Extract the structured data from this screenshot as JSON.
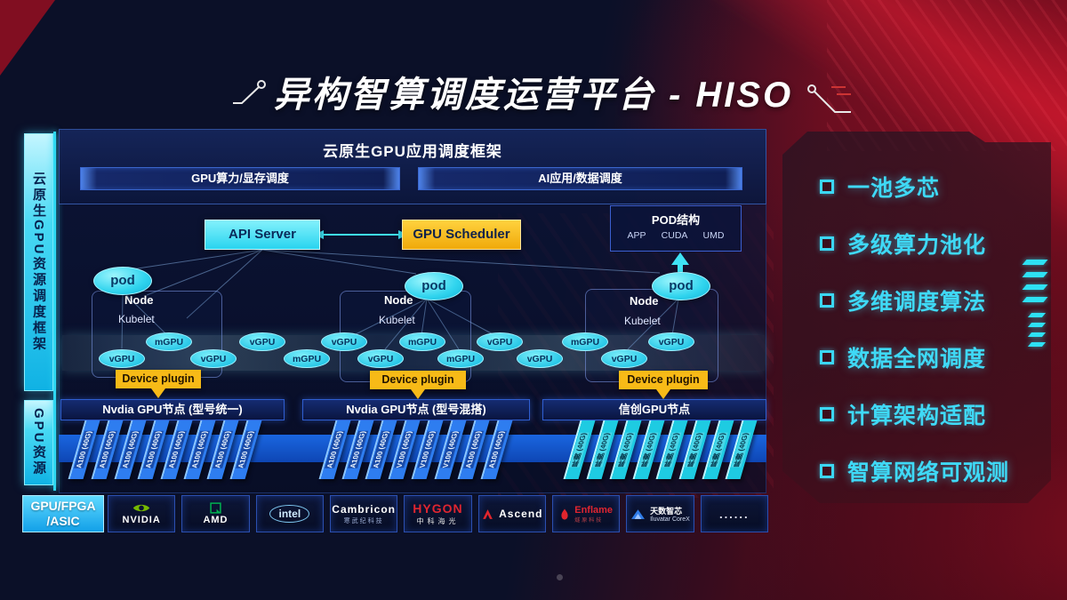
{
  "title": "异构智算调度运营平台 - HISO",
  "left_sidebar": {
    "top": "云原生GPU资源调度框架",
    "bottom": "GPU资源"
  },
  "framework": {
    "heading": "云原生GPU应用调度框架",
    "bars": [
      "GPU算力/显存调度",
      "AI应用/数据调度"
    ]
  },
  "control": {
    "api_server": "API Server",
    "gpu_scheduler": "GPU Scheduler"
  },
  "pod_structure": {
    "title": "POD结构",
    "layers": [
      "APP",
      "CUDA",
      "UMD"
    ]
  },
  "node_groups": [
    {
      "pod": "pod",
      "name": "Node",
      "agent": "Kubelet",
      "plugin": "Device plugin"
    },
    {
      "pod": "pod",
      "name": "Node",
      "agent": "Kubelet",
      "plugin": "Device plugin"
    },
    {
      "pod": "pod",
      "name": "Node",
      "agent": "Kubelet",
      "plugin": "Device plugin"
    }
  ],
  "gpu_ellipses": [
    "vGPU",
    "mGPU",
    "vGPU",
    "vGPU",
    "mGPU",
    "vGPU",
    "vGPU",
    "mGPU",
    "mGPU",
    "vGPU",
    "vGPU",
    "mGPU",
    "vGPU",
    "vGPU"
  ],
  "node_bars": [
    "Nvdia GPU节点 (型号统一)",
    "Nvdia GPU节点 (型号混搭)",
    "信创GPU节点"
  ],
  "gpu_stacks": {
    "uniform": [
      "A100 (40G)",
      "A100 (40G)",
      "A100 (40G)",
      "A100 (40G)",
      "A100 (40G)",
      "A100 (40G)",
      "A100 (40G)",
      "A100 (40G)"
    ],
    "mixed": [
      "A100 (40G)",
      "A100 (40G)",
      "A100 (40G)",
      "V100 (40G)",
      "V100 (40G)",
      "V100 (40G)",
      "A100 (40G)",
      "A100 (40G)"
    ],
    "domestic": [
      "昇腾 (40G)",
      "昇腾 (40G)",
      "昇腾 (40G)",
      "昇腾 (40G)",
      "昇腾 (40G)",
      "昇腾 (40G)",
      "昇腾 (40G)",
      "昇腾 (40G)"
    ]
  },
  "hardware_row": {
    "label_line1": "GPU/FPGA",
    "label_line2": "/ASIC",
    "vendors": [
      {
        "name": "NVIDIA"
      },
      {
        "name": "AMD"
      },
      {
        "name": "intel"
      },
      {
        "name": "Cambricon",
        "sub": "寒武纪科技"
      },
      {
        "name": "HYGON",
        "sub": "中科海光"
      },
      {
        "name": "Ascend"
      },
      {
        "name": "Enflame",
        "sub": "燧原科技"
      },
      {
        "name": "天数智芯",
        "sub": "Iluvatar CoreX"
      },
      {
        "name": "......"
      }
    ]
  },
  "features": [
    "一池多芯",
    "多级算力池化",
    "多维调度算法",
    "数据全网调度",
    "计算架构适配",
    "智算网络可观测"
  ],
  "colors": {
    "accent_cyan": "#35E1F2",
    "accent_yellow": "#F6B91C",
    "card_blue": "#2E7DF0",
    "card_cyan": "#1ECBE2",
    "nvidia_green": "#76B900",
    "amd_green": "#00B050",
    "brand_red": "#E02530",
    "panel_red": "#8A1020",
    "feature_cyan": "#3FD9F6"
  }
}
